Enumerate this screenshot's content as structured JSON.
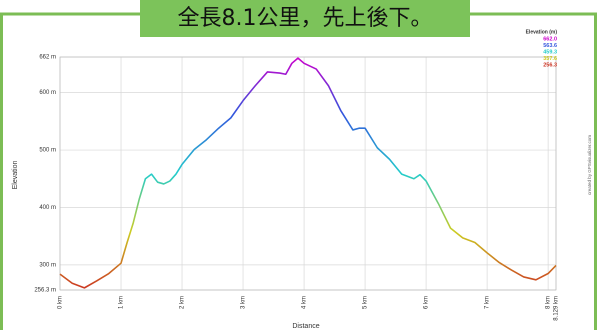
{
  "banner": "全長8.1公里，先上後下。",
  "credit": "created by GPSvisualizer.com",
  "chart_data": {
    "type": "line",
    "xlabel": "Distance",
    "ylabel": "Elevation",
    "xlim": [
      0,
      8.129
    ],
    "ylim": [
      256.3,
      662
    ],
    "xticks": [
      {
        "value": 0,
        "label": "0 km"
      },
      {
        "value": 1,
        "label": "1 km"
      },
      {
        "value": 2,
        "label": "2 km"
      },
      {
        "value": 3,
        "label": "3 km"
      },
      {
        "value": 4,
        "label": "4 km"
      },
      {
        "value": 5,
        "label": "5 km"
      },
      {
        "value": 6,
        "label": "6 km"
      },
      {
        "value": 7,
        "label": "7 km"
      },
      {
        "value": 8,
        "label": "8 km"
      },
      {
        "value": 8.129,
        "label": "8.129 km"
      }
    ],
    "yticks": [
      {
        "value": 256.3,
        "label": "256.3 m"
      },
      {
        "value": 300,
        "label": "300 m"
      },
      {
        "value": 400,
        "label": "400 m"
      },
      {
        "value": 500,
        "label": "500 m"
      },
      {
        "value": 600,
        "label": "600 m"
      },
      {
        "value": 662,
        "label": "662 m"
      }
    ],
    "grid": true,
    "legend": {
      "title": "Elevation (m)",
      "entries": [
        {
          "value": 662,
          "label": "662.0",
          "color": "#cc00cc"
        },
        {
          "value": 563.6,
          "label": "563.6",
          "color": "#3355dd"
        },
        {
          "value": 459.3,
          "label": "459.3",
          "color": "#22cccc"
        },
        {
          "value": 357.6,
          "label": "357.6",
          "color": "#cccc22"
        },
        {
          "value": 256.3,
          "label": "256.3",
          "color": "#cc3322"
        }
      ]
    },
    "x": [
      0,
      0.2,
      0.4,
      0.6,
      0.8,
      1.0,
      1.1,
      1.2,
      1.3,
      1.4,
      1.5,
      1.6,
      1.7,
      1.8,
      1.9,
      2.0,
      2.2,
      2.4,
      2.6,
      2.8,
      3.0,
      3.2,
      3.4,
      3.6,
      3.7,
      3.8,
      3.9,
      4.0,
      4.2,
      4.4,
      4.6,
      4.8,
      4.9,
      5.0,
      5.2,
      5.4,
      5.6,
      5.8,
      5.9,
      6.0,
      6.2,
      6.4,
      6.6,
      6.8,
      7.0,
      7.2,
      7.4,
      7.6,
      7.8,
      8.0,
      8.129
    ],
    "values": [
      284,
      268,
      260,
      272,
      285,
      303,
      339,
      373,
      415,
      450,
      458,
      444,
      441,
      446,
      458,
      475,
      501,
      518,
      538,
      556,
      586,
      612,
      636,
      634,
      632,
      651,
      660,
      651,
      641,
      612,
      569,
      535,
      538,
      538,
      504,
      484,
      458,
      450,
      457,
      446,
      407,
      364,
      347,
      339,
      321,
      304,
      291,
      279,
      274,
      285,
      299
    ]
  }
}
